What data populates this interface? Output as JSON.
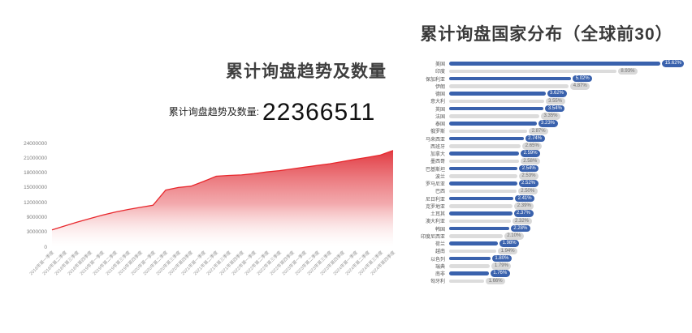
{
  "left_chart": {
    "title": "累计询盘趋势及数量",
    "stat_label": "累计询盘趋势及数量:",
    "stat_value": "22366511"
  },
  "right_chart": {
    "title": "累计询盘国家分布（全球前30）"
  },
  "colors": {
    "trend_line": "#e8272c",
    "trend_fill_top": "#e03038",
    "trend_fill_bottom": "#ffffff",
    "bar_blue": "#3a62ad",
    "bar_gray": "#dcdcdc",
    "badge_blue": "#3a62ad",
    "badge_gray": "#d8d8d8"
  },
  "chart_data": [
    {
      "type": "area",
      "title": "累计询盘趋势及数量",
      "ylabel": "",
      "xlabel": "",
      "ylim": [
        0,
        24000000
      ],
      "grid": false,
      "y_ticks": [
        "24000000",
        "21000000",
        "18000000",
        "15000000",
        "12000000",
        "9000000",
        "3000000",
        "0"
      ],
      "x": [
        "2018年第一季度",
        "2018年第二季度",
        "2018年第三季度",
        "2018年第四季度",
        "2019年第一季度",
        "2019年第二季度",
        "2019年第三季度",
        "2019年第四季度",
        "2020年第一季度",
        "2020年第二季度",
        "2020年第三季度",
        "2020年第四季度",
        "2021年第一季度",
        "2021年第二季度",
        "2021年第三季度",
        "2021年第四季度",
        "2022年第一季度",
        "2022年第二季度",
        "2022年第三季度",
        "2022年第四季度",
        "2023年第一季度",
        "2023年第二季度",
        "2023年第三季度",
        "2023年第四季度",
        "2024年第一季度",
        "2024年第二季度",
        "2024年第三季度",
        "2024年第四季度"
      ],
      "values": [
        4000000,
        4900000,
        5800000,
        6600000,
        7400000,
        8100000,
        8700000,
        9200000,
        9700000,
        13200000,
        13800000,
        14100000,
        15200000,
        16400000,
        16600000,
        16700000,
        17000000,
        17400000,
        17700000,
        18100000,
        18500000,
        18900000,
        19300000,
        19800000,
        20300000,
        20800000,
        21300000,
        22366511
      ]
    },
    {
      "type": "bar",
      "orientation": "horizontal",
      "title": "累计询盘国家分布（全球前30）",
      "unit": "%",
      "legend": false,
      "scale": "log",
      "categories": [
        "美国",
        "印度",
        "保加利亚",
        "伊朗",
        "德国",
        "意大利",
        "英国",
        "法国",
        "泰国",
        "俄罗斯",
        "马来西亚",
        "西班牙",
        "加拿大",
        "墨西哥",
        "巴基斯坦",
        "波兰",
        "罗马尼亚",
        "巴西",
        "尼日利亚",
        "克罗地亚",
        "土耳其",
        "澳大利亚",
        "韩国",
        "印度尼西亚",
        "荷兰",
        "越南",
        "以色列",
        "瑞典",
        "南非",
        "匈牙利"
      ],
      "values": [
        15.62,
        8.93,
        5.02,
        4.87,
        3.62,
        3.55,
        3.54,
        3.35,
        3.23,
        2.87,
        2.74,
        2.65,
        2.59,
        2.58,
        2.54,
        2.53,
        2.52,
        2.5,
        2.41,
        2.39,
        2.37,
        2.32,
        2.28,
        2.1,
        1.98,
        1.94,
        1.8,
        1.79,
        1.76,
        1.66
      ]
    }
  ]
}
